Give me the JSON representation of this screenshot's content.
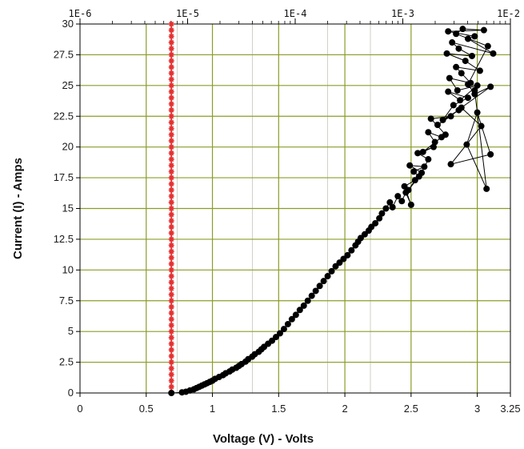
{
  "chart_data": {
    "type": "scatter",
    "title": "",
    "xlabel": "Voltage (V) - Volts",
    "ylabel": "Current (I) - Amps",
    "xlim": [
      0,
      3.25
    ],
    "ylim": [
      0,
      30
    ],
    "grid": true,
    "x_ticks": [
      "0",
      "0.5",
      "1",
      "1.5",
      "2",
      "2.5",
      "3",
      "3.25"
    ],
    "y_ticks": [
      "0",
      "2.5",
      "5",
      "7.5",
      "10",
      "12.5",
      "15",
      "17.5",
      "20",
      "22.5",
      "25",
      "27.5",
      "30"
    ],
    "top_axis": {
      "scale": "log",
      "range": [
        1e-06,
        0.01
      ],
      "ticks": [
        "1E-6",
        "1E-5",
        "1E-4",
        "1E-3",
        "1E-2"
      ]
    },
    "series": [
      {
        "name": "",
        "color": "#e53030",
        "style": "markers",
        "x": [
          0.69,
          0.69,
          0.69,
          0.69,
          0.69,
          0.69,
          0.69,
          0.69,
          0.69,
          0.69,
          0.69,
          0.69,
          0.69,
          0.69,
          0.69,
          0.69,
          0.69,
          0.69,
          0.69,
          0.69,
          0.69,
          0.69,
          0.69,
          0.69,
          0.69,
          0.69,
          0.69,
          0.69,
          0.69,
          0.69,
          0.69,
          0.69,
          0.69,
          0.69,
          0.69,
          0.69,
          0.69,
          0.69,
          0.69,
          0.69,
          0.69,
          0.69,
          0.69,
          0.69,
          0.69,
          0.69,
          0.69,
          0.69,
          0.69,
          0.69,
          0.69,
          0.69,
          0.69,
          0.69,
          0.69,
          0.69,
          0.69,
          0.69,
          0.69,
          0.69,
          0.69
        ],
        "y": [
          0,
          0.5,
          1,
          1.5,
          2,
          2.5,
          3,
          3.5,
          4,
          4.5,
          5,
          5.5,
          6,
          6.5,
          7,
          7.5,
          8,
          8.5,
          9,
          9.5,
          10,
          10.5,
          11,
          11.5,
          12,
          12.5,
          13,
          13.5,
          14,
          14.5,
          15,
          15.5,
          16,
          16.5,
          17,
          17.5,
          18,
          18.5,
          19,
          19.5,
          20,
          20.5,
          21,
          21.5,
          22,
          22.5,
          23,
          23.5,
          24,
          24.5,
          25,
          25.5,
          26,
          26.5,
          27,
          27.5,
          28,
          28.5,
          29,
          29.5,
          30
        ]
      },
      {
        "name": "",
        "color": "#000000",
        "style": "markers+line",
        "x": [
          0.69,
          0.77,
          0.8,
          0.83,
          0.86,
          0.88,
          0.9,
          0.92,
          0.94,
          0.96,
          0.98,
          1.0,
          1.02,
          1.05,
          1.08,
          1.1,
          1.13,
          1.15,
          1.18,
          1.2,
          1.22,
          1.25,
          1.27,
          1.3,
          1.32,
          1.35,
          1.37,
          1.39,
          1.42,
          1.45,
          1.48,
          1.51,
          1.54,
          1.57,
          1.6,
          1.63,
          1.66,
          1.69,
          1.72,
          1.75,
          1.78,
          1.81,
          1.84,
          1.87,
          1.9,
          1.93,
          1.96,
          1.99,
          2.02,
          2.05,
          2.08,
          2.1,
          2.12,
          2.15,
          2.18,
          2.2,
          2.23,
          2.26,
          2.28,
          2.31,
          2.34,
          2.36,
          2.4,
          2.43,
          2.46,
          2.5,
          2.45,
          2.53,
          2.48,
          2.56,
          2.52,
          2.6,
          2.49,
          2.58,
          2.63,
          2.55,
          2.67,
          2.59,
          2.73,
          2.63,
          2.68,
          2.76,
          2.65,
          2.8,
          2.7,
          2.86,
          2.74,
          2.82,
          2.93,
          2.78,
          2.87,
          3.0,
          2.85,
          2.79,
          2.95,
          2.88,
          2.84,
          3.02,
          2.91,
          2.77,
          2.96,
          2.86,
          2.81,
          3.12,
          2.93,
          2.98,
          2.78,
          3.05,
          2.89,
          2.84,
          3.08,
          2.93,
          2.98,
          3.1,
          2.88,
          3.03,
          2.8,
          3.1,
          3.0,
          2.92,
          3.07,
          2.98
        ],
        "y": [
          0,
          0.05,
          0.1,
          0.2,
          0.3,
          0.4,
          0.5,
          0.6,
          0.7,
          0.8,
          0.9,
          1.0,
          1.15,
          1.3,
          1.45,
          1.6,
          1.75,
          1.9,
          2.05,
          2.2,
          2.35,
          2.55,
          2.75,
          2.95,
          3.15,
          3.35,
          3.55,
          3.75,
          4.0,
          4.25,
          4.55,
          4.85,
          5.2,
          5.6,
          6.0,
          6.35,
          6.75,
          7.1,
          7.5,
          7.9,
          8.3,
          8.7,
          9.1,
          9.5,
          9.9,
          10.3,
          10.6,
          10.9,
          11.2,
          11.6,
          12.0,
          12.3,
          12.6,
          12.9,
          13.2,
          13.5,
          13.8,
          14.2,
          14.6,
          15.0,
          15.5,
          15.1,
          16.0,
          15.6,
          16.3,
          15.3,
          16.8,
          17.3,
          16.5,
          17.6,
          18.0,
          18.4,
          18.5,
          17.9,
          19.0,
          19.5,
          20.0,
          19.6,
          20.8,
          21.2,
          20.4,
          21.0,
          22.3,
          22.5,
          21.8,
          23.0,
          22.2,
          23.4,
          24.0,
          24.5,
          23.8,
          25.0,
          24.6,
          25.6,
          25.2,
          26.0,
          26.5,
          26.2,
          27.0,
          27.6,
          27.4,
          28.0,
          28.5,
          27.6,
          28.8,
          29.0,
          29.4,
          29.5,
          29.6,
          29.2,
          28.2,
          25.1,
          24.3,
          24.9,
          23.2,
          21.7,
          18.6,
          19.4,
          22.8,
          20.2,
          16.6,
          24.6
        ]
      }
    ]
  },
  "colors": {
    "background": "#ffffff",
    "major_grid": "#8c9c2a",
    "minor_grid": "#cfd2c6",
    "red_series": "#e53030",
    "black_series": "#000000"
  }
}
